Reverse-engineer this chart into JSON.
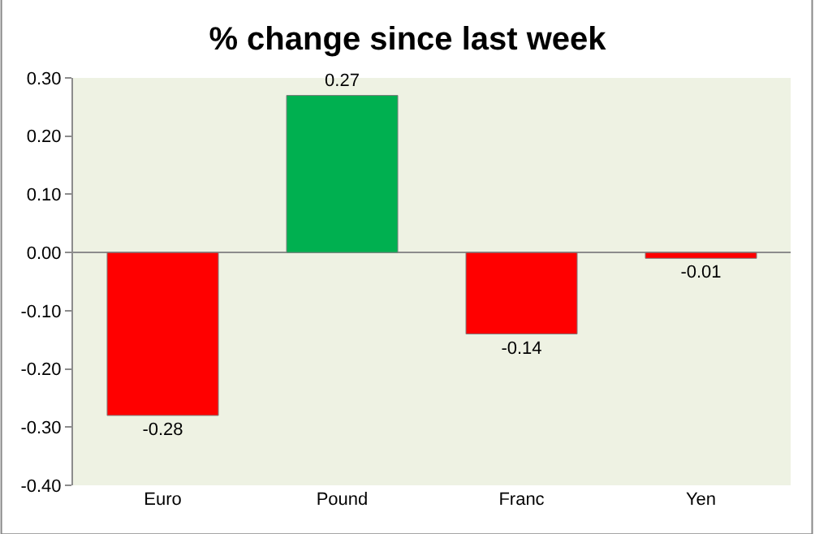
{
  "chart_data": {
    "type": "bar",
    "title": "% change since last week",
    "categories": [
      "Euro",
      "Pound",
      "Franc",
      "Yen"
    ],
    "values": [
      -0.28,
      0.27,
      -0.14,
      -0.01
    ],
    "colors": [
      "#ff0000",
      "#00b050",
      "#ff0000",
      "#ff0000"
    ],
    "ylim": [
      -0.4,
      0.3
    ],
    "yticks": [
      {
        "value": -0.4,
        "label": "-0.40"
      },
      {
        "value": -0.3,
        "label": "-0.30"
      },
      {
        "value": -0.2,
        "label": "-0.20"
      },
      {
        "value": -0.1,
        "label": "-0.10"
      },
      {
        "value": 0,
        "label": "0.00"
      },
      {
        "value": 0.1,
        "label": "0.10"
      },
      {
        "value": 0.2,
        "label": "0.20"
      },
      {
        "value": 0.3,
        "label": "0.30"
      }
    ],
    "data_labels": true,
    "legend": false
  }
}
